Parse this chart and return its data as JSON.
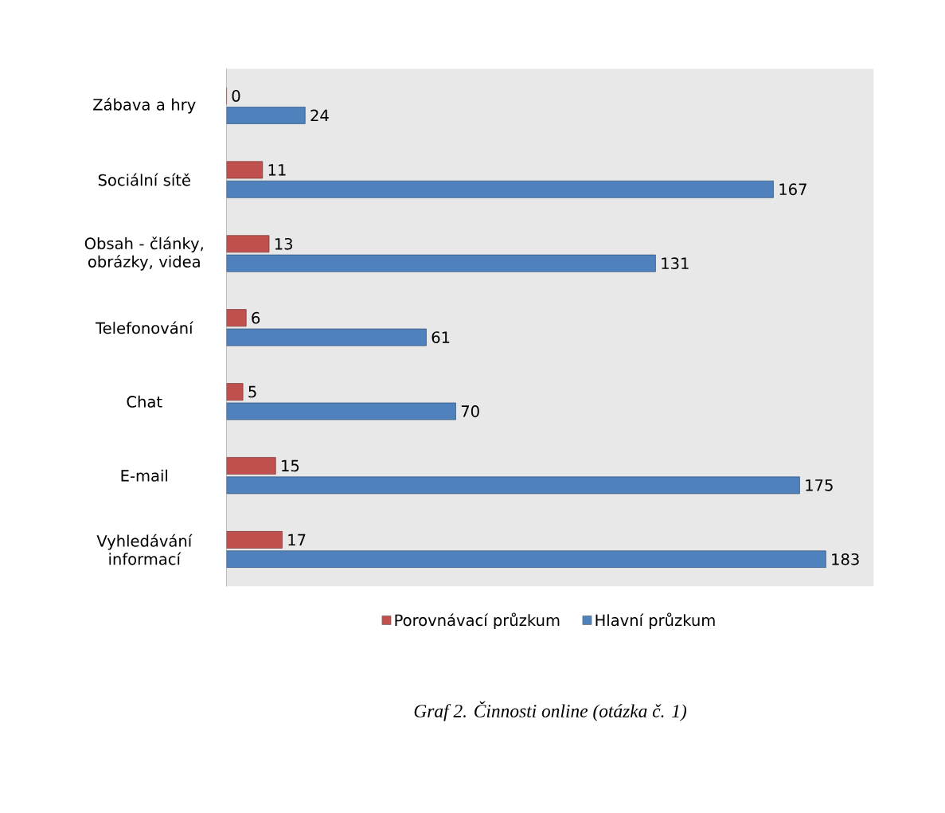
{
  "chart_data": {
    "type": "bar",
    "orientation": "horizontal",
    "categories": [
      "Zábava a hry",
      "Sociální sítě",
      "Obsah - články, obrázky, videa",
      "Telefonování",
      "Chat",
      "E-mail",
      "Vyhledávání informací"
    ],
    "series": [
      {
        "name": "Porovnávací průzkum",
        "color": "#c0504d",
        "values": [
          0,
          11,
          13,
          6,
          5,
          15,
          17
        ]
      },
      {
        "name": "Hlavní průzkum",
        "color": "#4f81bd",
        "values": [
          24,
          167,
          131,
          61,
          70,
          175,
          183
        ]
      }
    ],
    "data_labels": true,
    "legend": "bottom",
    "annotations": [
      "Graf 2. Činnosti online (otázka č. 1)"
    ]
  }
}
